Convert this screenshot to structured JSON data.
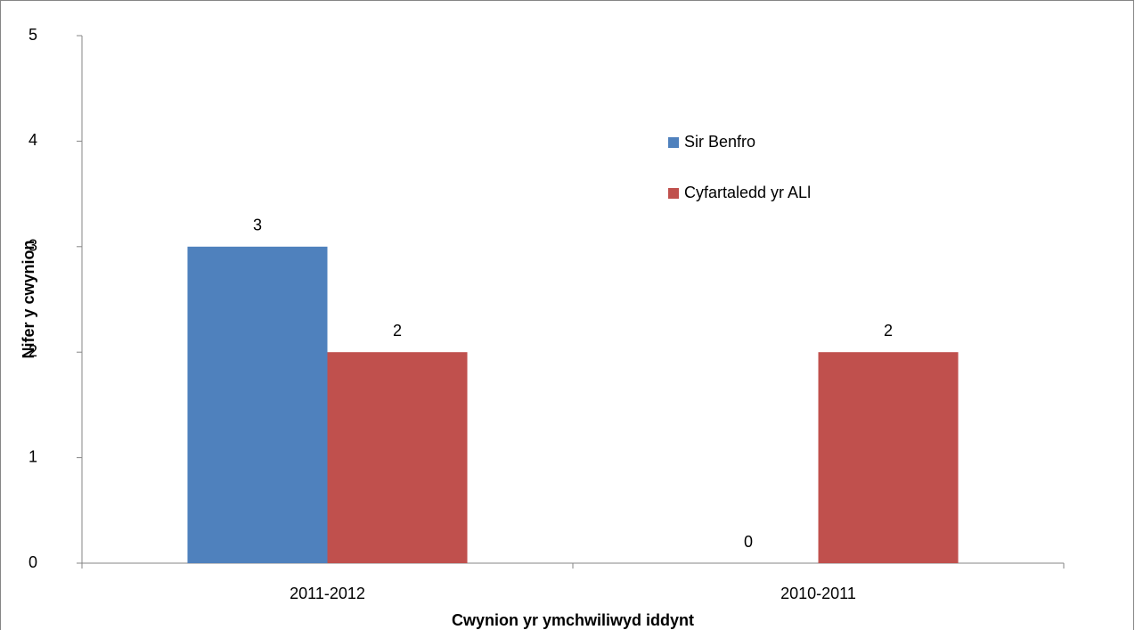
{
  "chart_data": {
    "type": "bar",
    "xlabel": "Cwynion yr ymchwiliwyd iddynt",
    "ylabel": "Nifer y cwynion",
    "categories": [
      "2011-2012",
      "2010-2011"
    ],
    "series": [
      {
        "name": "Sir Benfro",
        "color": "#4f81bd",
        "values": [
          3,
          0
        ]
      },
      {
        "name": "Cyfartaledd yr ALl",
        "color": "#c0504d",
        "values": [
          2,
          2
        ]
      }
    ],
    "ylim": [
      0,
      5
    ],
    "yticks": [
      0,
      1,
      2,
      3,
      4,
      5
    ],
    "grid": false,
    "legend": "upper right"
  }
}
